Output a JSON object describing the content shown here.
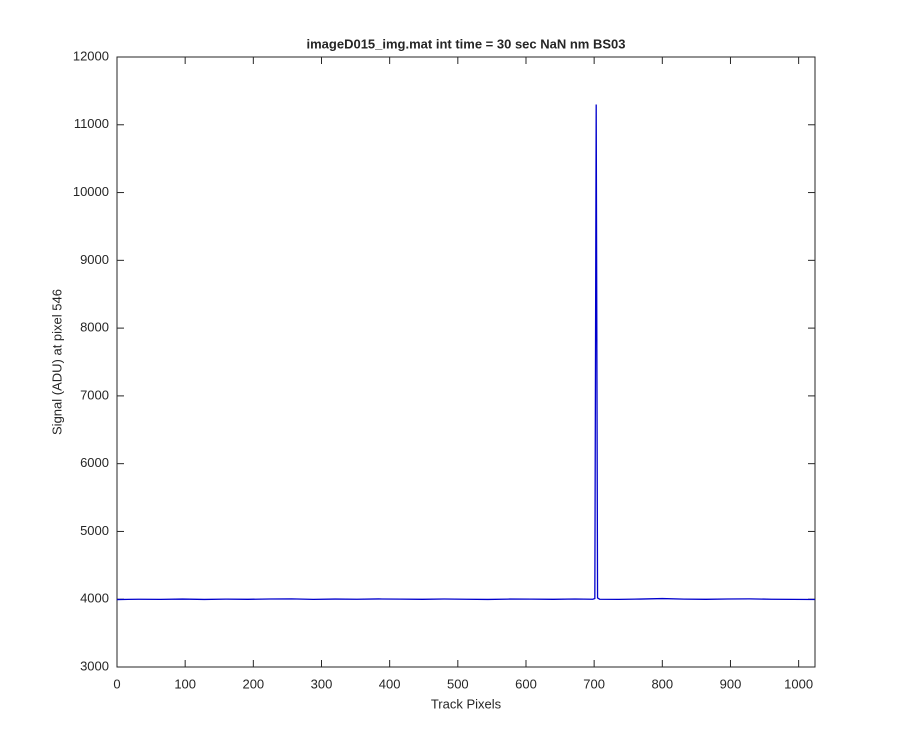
{
  "chart_data": {
    "type": "line",
    "title": "imageD015_img.mat int time = 30 sec  NaN nm BS03",
    "x_label": "Track Pixels",
    "y_label": "Signal (ADU) at pixel 546",
    "x": [
      0,
      32,
      64,
      96,
      128,
      160,
      192,
      224,
      256,
      288,
      320,
      352,
      384,
      416,
      448,
      480,
      512,
      544,
      576,
      608,
      640,
      672,
      698,
      701,
      703,
      705,
      708,
      736,
      768,
      800,
      832,
      864,
      896,
      928,
      960,
      992,
      1024
    ],
    "series": [
      {
        "color": "#0000cc",
        "values": [
          3995,
          4000,
          3998,
          4002,
          3997,
          4001,
          3999,
          4003,
          4005,
          3998,
          4002,
          4000,
          4004,
          4001,
          3999,
          4003,
          4000,
          3997,
          4002,
          4001,
          3999,
          4003,
          4000,
          4010,
          11300,
          4020,
          4000,
          3998,
          4002,
          4010,
          4001,
          3999,
          4003,
          4005,
          4000,
          3998,
          3996
        ]
      }
    ],
    "xlim": [
      0,
      1024
    ],
    "xticks": [
      0,
      100,
      200,
      300,
      400,
      500,
      600,
      700,
      800,
      900,
      1000
    ],
    "ylim": [
      3000,
      12000
    ],
    "yticks": [
      3000,
      4000,
      5000,
      6000,
      7000,
      8000,
      9000,
      10000,
      11000,
      12000
    ]
  }
}
